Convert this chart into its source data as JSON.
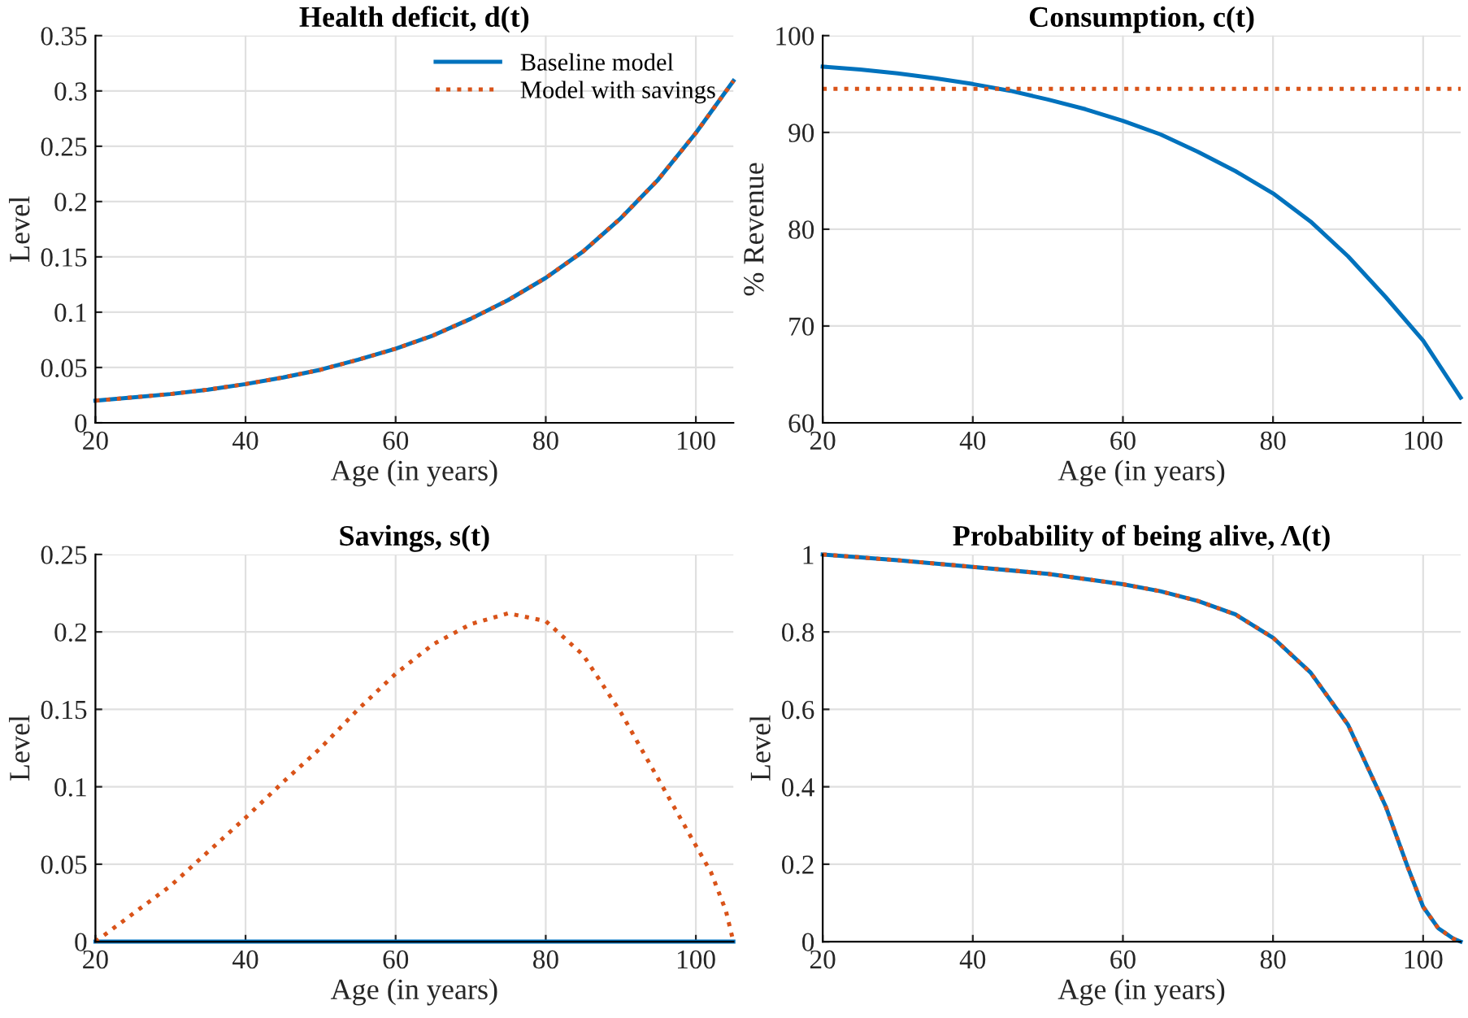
{
  "chart_data": [
    {
      "type": "line",
      "title": "Health deficit, d(t)",
      "xlabel": "Age (in years)",
      "ylabel": "Level",
      "xlim": [
        20,
        105
      ],
      "xticks": [
        20,
        40,
        60,
        80,
        100
      ],
      "ylim": [
        0,
        0.35
      ],
      "yticks": [
        0,
        0.05,
        0.1,
        0.15,
        0.2,
        0.25,
        0.3,
        0.35
      ],
      "grid": true,
      "legend": "top right",
      "x": [
        20,
        25,
        30,
        35,
        40,
        45,
        50,
        55,
        60,
        65,
        70,
        75,
        80,
        85,
        90,
        95,
        100,
        105
      ],
      "series": [
        {
          "name": "Baseline model",
          "color": "#0072bd",
          "line_style": "solid",
          "values": [
            0.02,
            0.023,
            0.026,
            0.03,
            0.035,
            0.041,
            0.048,
            0.057,
            0.067,
            0.079,
            0.094,
            0.111,
            0.131,
            0.155,
            0.185,
            0.22,
            0.262,
            0.309
          ]
        },
        {
          "name": "Model with savings",
          "color": "#d95319",
          "line_style": "dotted",
          "values": [
            0.02,
            0.023,
            0.026,
            0.03,
            0.035,
            0.041,
            0.048,
            0.057,
            0.067,
            0.079,
            0.094,
            0.111,
            0.131,
            0.155,
            0.185,
            0.22,
            0.262,
            0.309
          ]
        }
      ]
    },
    {
      "type": "line",
      "title": "Consumption, c(t)",
      "xlabel": "Age (in years)",
      "ylabel": "% Revenue",
      "xlim": [
        20,
        105
      ],
      "xticks": [
        20,
        40,
        60,
        80,
        100
      ],
      "ylim": [
        60,
        100
      ],
      "yticks": [
        60,
        70,
        80,
        90,
        100
      ],
      "grid": true,
      "x": [
        20,
        25,
        30,
        35,
        40,
        45,
        50,
        55,
        60,
        65,
        70,
        75,
        80,
        85,
        90,
        95,
        100,
        105
      ],
      "series": [
        {
          "color": "#0072bd",
          "line_style": "solid",
          "values": [
            96.8,
            96.5,
            96.1,
            95.6,
            95.0,
            94.3,
            93.4,
            92.4,
            91.2,
            89.8,
            88.0,
            86.0,
            83.7,
            80.8,
            77.2,
            73.0,
            68.5,
            62.6
          ]
        },
        {
          "color": "#d95319",
          "line_style": "dotted",
          "values": [
            94.5,
            94.5,
            94.5,
            94.5,
            94.5,
            94.5,
            94.5,
            94.5,
            94.5,
            94.5,
            94.5,
            94.5,
            94.5,
            94.5,
            94.5,
            94.5,
            94.5,
            94.5
          ]
        }
      ]
    },
    {
      "type": "line",
      "title": "Savings, s(t)",
      "xlabel": "Age (in years)",
      "ylabel": "Level",
      "xlim": [
        20,
        105
      ],
      "xticks": [
        20,
        40,
        60,
        80,
        100
      ],
      "ylim": [
        0,
        0.25
      ],
      "yticks": [
        0,
        0.05,
        0.1,
        0.15,
        0.2,
        0.25
      ],
      "grid": true,
      "series": [
        {
          "color": "#0072bd",
          "line_style": "solid",
          "x": [
            20,
            105
          ],
          "values": [
            0,
            0
          ]
        },
        {
          "color": "#d95319",
          "line_style": "dotted",
          "x": [
            20,
            25,
            30,
            35,
            40,
            45,
            50,
            55,
            60,
            65,
            70,
            75,
            80,
            85,
            90,
            95,
            100,
            102,
            104,
            105
          ],
          "values": [
            0,
            0.018,
            0.036,
            0.058,
            0.08,
            0.103,
            0.125,
            0.15,
            0.173,
            0.192,
            0.205,
            0.212,
            0.207,
            0.185,
            0.148,
            0.105,
            0.062,
            0.045,
            0.02,
            0
          ]
        }
      ]
    },
    {
      "type": "line",
      "title": "Probability of being alive, Λ(t)",
      "xlabel": "Age (in years)",
      "ylabel": "Level",
      "xlim": [
        20,
        105
      ],
      "xticks": [
        20,
        40,
        60,
        80,
        100
      ],
      "ylim": [
        0,
        1
      ],
      "yticks": [
        0,
        0.2,
        0.4,
        0.6,
        0.8,
        1
      ],
      "grid": true,
      "x": [
        20,
        30,
        40,
        50,
        60,
        65,
        70,
        75,
        80,
        85,
        90,
        95,
        98,
        100,
        102,
        104,
        105
      ],
      "series": [
        {
          "color": "#0072bd",
          "line_style": "solid",
          "values": [
            1.0,
            0.985,
            0.968,
            0.95,
            0.923,
            0.905,
            0.88,
            0.845,
            0.785,
            0.695,
            0.56,
            0.35,
            0.19,
            0.09,
            0.035,
            0.008,
            0
          ]
        },
        {
          "color": "#d95319",
          "line_style": "dotted",
          "values": [
            1.0,
            0.985,
            0.968,
            0.95,
            0.923,
            0.905,
            0.88,
            0.845,
            0.785,
            0.695,
            0.56,
            0.35,
            0.19,
            0.09,
            0.035,
            0.008,
            0
          ]
        }
      ]
    }
  ]
}
